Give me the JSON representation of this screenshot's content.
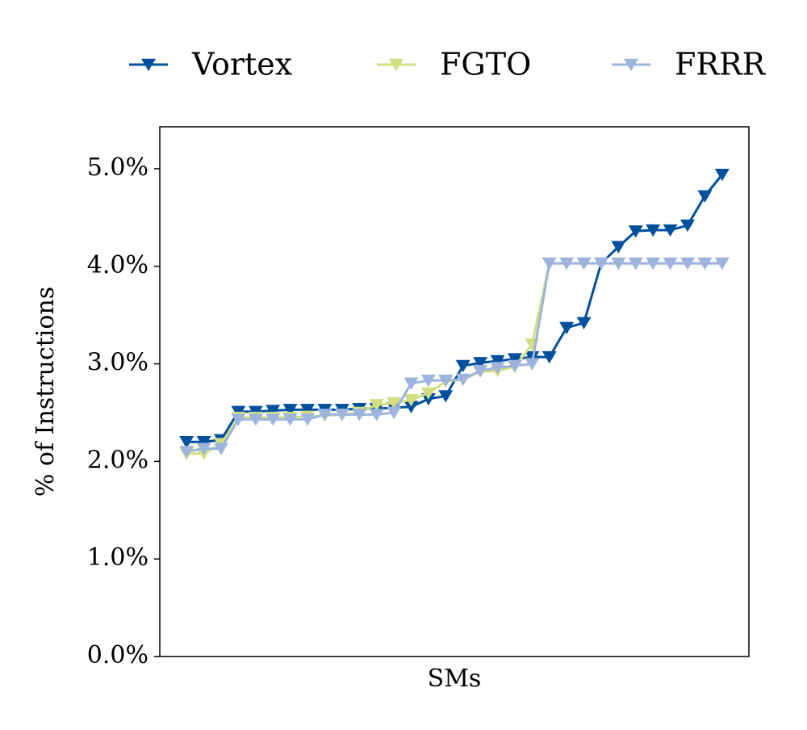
{
  "chart_data": {
    "type": "line",
    "x_label": "SMs",
    "y_label": "% of Instructions",
    "categories": [
      null,
      null,
      null,
      null,
      null,
      null,
      null,
      null,
      null,
      null,
      null,
      null,
      null,
      null,
      null,
      null,
      null,
      null,
      null,
      null,
      null,
      null,
      null,
      null,
      null,
      null,
      null,
      null,
      null,
      null,
      null,
      null
    ],
    "ylim": [
      0,
      5.43
    ],
    "yticks": [
      {
        "value": 0,
        "label": "0.0%"
      },
      {
        "value": 1,
        "label": "1.0%"
      },
      {
        "value": 2,
        "label": "2.0%"
      },
      {
        "value": 3,
        "label": "3.0%"
      },
      {
        "value": 4,
        "label": "4.0%"
      },
      {
        "value": 5,
        "label": "5.0%"
      }
    ],
    "legend_position": "top",
    "series": [
      {
        "name": "Vortex",
        "color": "#00509e",
        "values": [
          2.2,
          2.2,
          2.22,
          2.51,
          2.51,
          2.52,
          2.53,
          2.53,
          2.53,
          2.53,
          2.54,
          2.54,
          2.55,
          2.56,
          2.64,
          2.67,
          2.98,
          3.01,
          3.03,
          3.05,
          3.07,
          3.07,
          3.37,
          3.42,
          4.03,
          4.2,
          4.36,
          4.37,
          4.37,
          4.42,
          4.72,
          4.94
        ]
      },
      {
        "name": "FGTO",
        "color": "#d2df7f",
        "values": [
          2.08,
          2.08,
          2.18,
          2.45,
          2.45,
          2.45,
          2.45,
          2.46,
          2.47,
          2.48,
          2.5,
          2.58,
          2.6,
          2.63,
          2.7,
          2.82,
          2.84,
          2.92,
          2.93,
          2.97,
          3.2,
          4.03,
          4.03,
          4.03,
          4.03,
          4.03,
          4.03,
          4.03,
          4.03,
          4.03,
          4.03,
          4.03
        ]
      },
      {
        "name": "FRRR",
        "color": "#9db5de",
        "values": [
          2.1,
          2.13,
          2.13,
          2.43,
          2.43,
          2.43,
          2.43,
          2.43,
          2.48,
          2.48,
          2.48,
          2.48,
          2.5,
          2.8,
          2.83,
          2.83,
          2.84,
          2.93,
          2.96,
          2.98,
          3.0,
          4.03,
          4.03,
          4.03,
          4.03,
          4.03,
          4.03,
          4.03,
          4.03,
          4.03,
          4.03,
          4.03
        ]
      }
    ]
  }
}
